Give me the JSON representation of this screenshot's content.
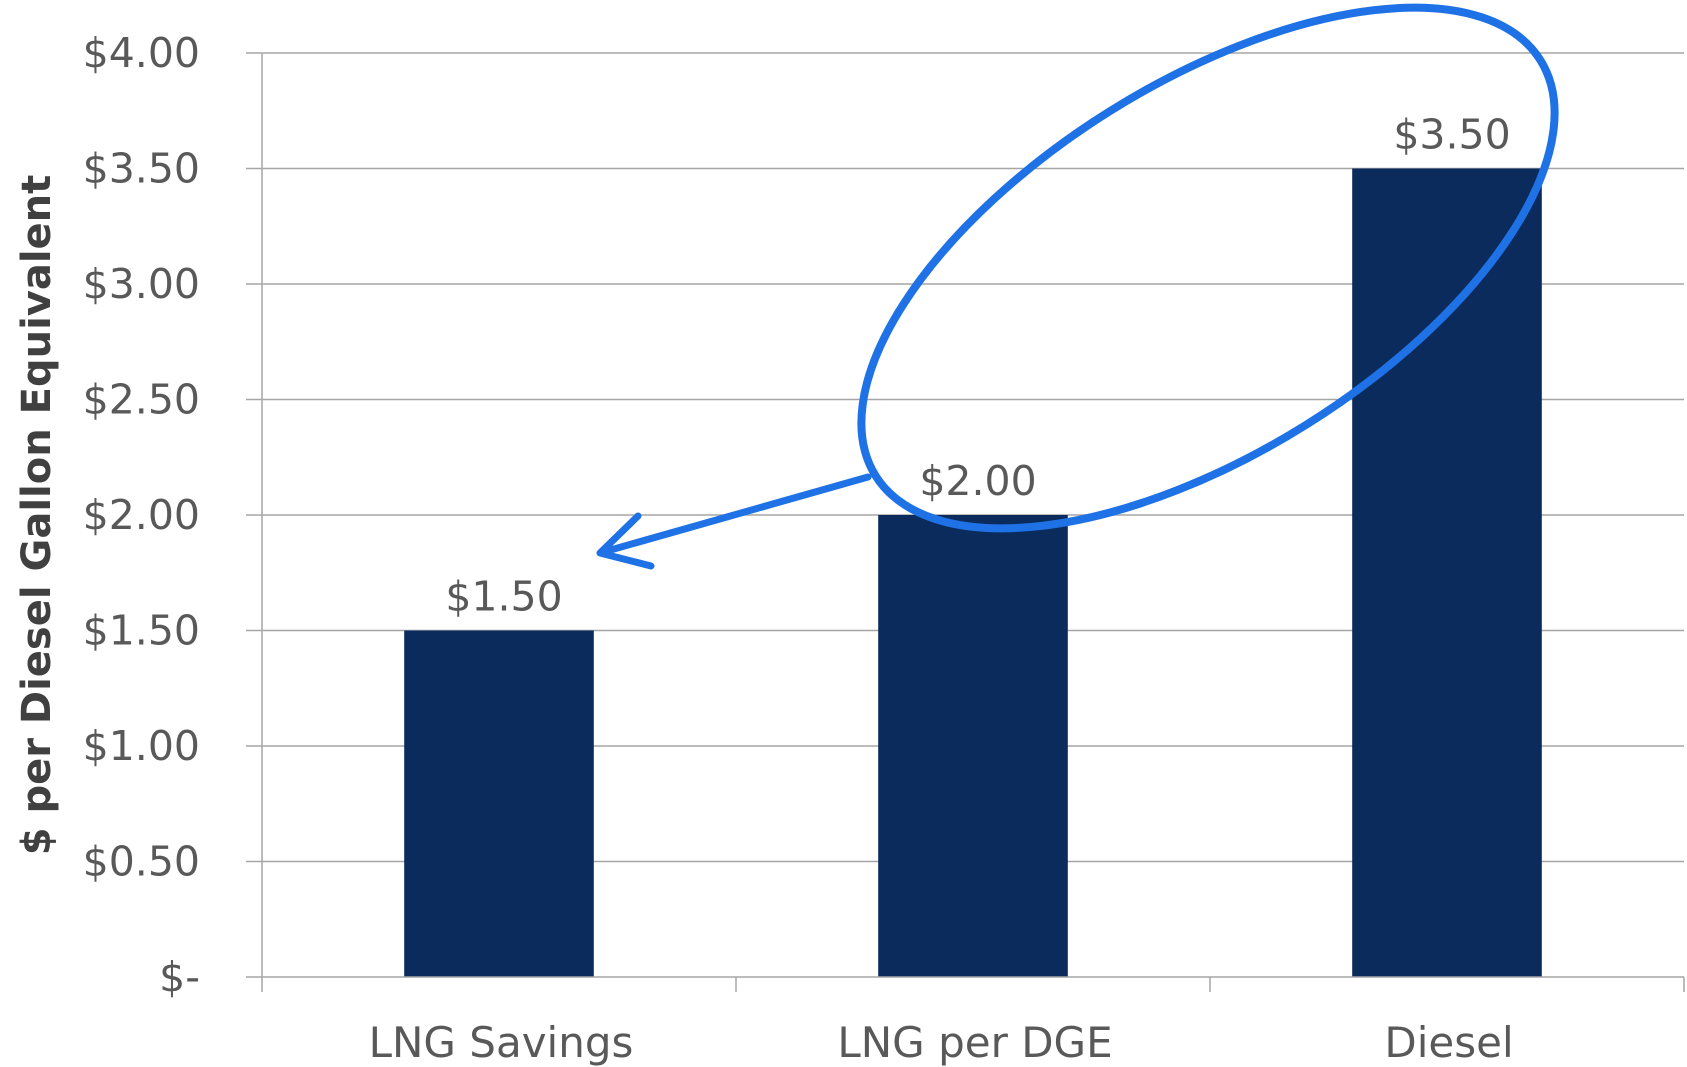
{
  "chart_data": {
    "type": "bar",
    "title": "",
    "xlabel": "",
    "ylabel": "$ per Diesel Gallon Equivalent",
    "categories": [
      "LNG Savings",
      "LNG per DGE",
      "Diesel"
    ],
    "values": [
      1.5,
      2.0,
      3.5
    ],
    "data_labels": [
      "$1.50",
      "$2.00",
      "$3.50"
    ],
    "ylim": [
      0,
      4
    ],
    "y_ticks": [
      0,
      0.5,
      1.0,
      1.5,
      2.0,
      2.5,
      3.0,
      3.5,
      4.0
    ],
    "y_tick_labels": [
      "$-",
      "$0.50",
      "$1.00",
      "$1.50",
      "$2.00",
      "$2.50",
      "$3.00",
      "$3.50",
      "$4.00"
    ],
    "grid": true,
    "legend": "none",
    "bar_color": "#0a2b5c",
    "annotation": {
      "shape": "ellipse with arrow",
      "encircles": [
        "LNG per DGE",
        "Diesel"
      ],
      "points_to": "LNG Savings",
      "color": "#1f72e6"
    }
  }
}
